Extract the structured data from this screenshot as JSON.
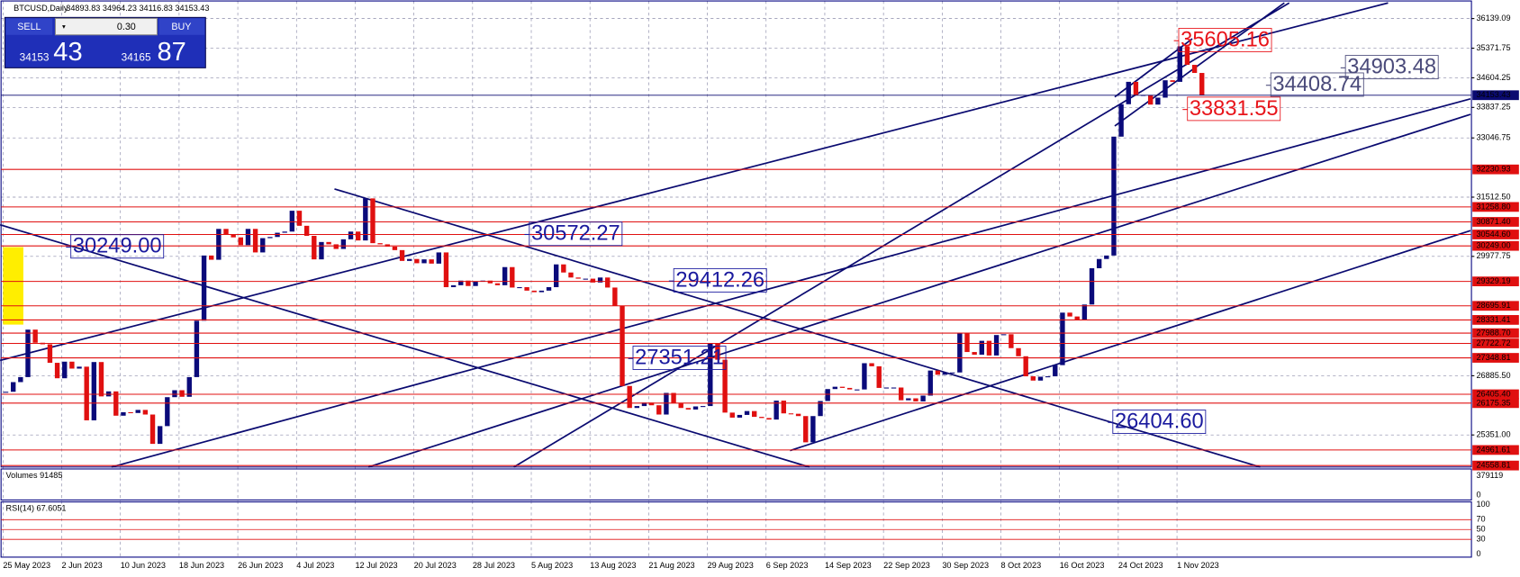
{
  "header": {
    "symbol": "BTCUSD,Daily",
    "ohlc": "34893.83 34964.23 34116.83 34153.43"
  },
  "trade_panel": {
    "sell": "SELL",
    "buy": "BUY",
    "lot": "0.30",
    "sell_small": "34153",
    "sell_big": "43",
    "buy_small": "34165",
    "buy_big": "87"
  },
  "chart_data": {
    "type": "candlestick",
    "ylim": [
      24520,
      36620
    ],
    "yticks": [
      {
        "value": 36139.09,
        "label": "36139.09"
      },
      {
        "value": 35371.75,
        "label": "35371.75"
      },
      {
        "value": 34604.25,
        "label": "34604.25"
      },
      {
        "value": 33837.25,
        "label": "33837.25"
      },
      {
        "value": 33046.75,
        "label": "33046.75"
      },
      {
        "value": 31512.5,
        "label": "31512.50"
      },
      {
        "value": 29977.75,
        "label": "29977.75"
      },
      {
        "value": 26885.5,
        "label": "26885.50"
      },
      {
        "value": 25351,
        "label": "25351.00"
      }
    ],
    "levels": [
      {
        "value": 32230.93,
        "label": "32230.93"
      },
      {
        "value": 31258.8,
        "label": "31258.80"
      },
      {
        "value": 30871.4,
        "label": "30871.40"
      },
      {
        "value": 30544.6,
        "label": "30544.60"
      },
      {
        "value": 30249,
        "label": "30249.00"
      },
      {
        "value": 29329.19,
        "label": "29329.19"
      },
      {
        "value": 28695.91,
        "label": "28695.91"
      },
      {
        "value": 28331.41,
        "label": "28331.41"
      },
      {
        "value": 27988.7,
        "label": "27988.70"
      },
      {
        "value": 27722.72,
        "label": "27722.72"
      },
      {
        "value": 27348.81,
        "label": "27348.81"
      },
      {
        "value": 26405.4,
        "label": "26405.40"
      },
      {
        "value": 26175.35,
        "label": "26175.35"
      },
      {
        "value": 24961.61,
        "label": "24961.61"
      },
      {
        "value": 24558.81,
        "label": "24558.81"
      }
    ],
    "current_price": {
      "value": 34153.43,
      "label": "34153.43"
    },
    "x_tick_labels": [
      "25 May 2023",
      "2 Jun 2023",
      "10 Jun 2023",
      "18 Jun 2023",
      "26 Jun 2023",
      "4 Jul 2023",
      "12 Jul 2023",
      "20 Jul 2023",
      "28 Jul 2023",
      "5 Aug 2023",
      "13 Aug 2023",
      "21 Aug 2023",
      "29 Aug 2023",
      "6 Sep 2023",
      "14 Sep 2023",
      "22 Sep 2023",
      "30 Sep 2023",
      "8 Oct 2023",
      "16 Oct 2023",
      "24 Oct 2023",
      "1 Nov 2023"
    ],
    "closes": [
      26470,
      26720,
      26850,
      28080,
      27740,
      27700,
      27220,
      26820,
      27250,
      27070,
      27120,
      25730,
      27240,
      26350,
      26480,
      25850,
      25940,
      25920,
      26000,
      25880,
      25120,
      25580,
      26330,
      26510,
      26340,
      26850,
      28310,
      30000,
      29890,
      30690,
      30540,
      30470,
      30270,
      30690,
      30080,
      30450,
      30480,
      30590,
      30620,
      31160,
      30770,
      30510,
      29900,
      30350,
      30290,
      30170,
      30420,
      30620,
      30390,
      31480,
      30320,
      30290,
      30230,
      30140,
      29860,
      29910,
      29800,
      29900,
      29790,
      30080,
      29180,
      29230,
      29350,
      29210,
      29320,
      29350,
      29280,
      29230,
      29700,
      29170,
      29180,
      29090,
      29050,
      29090,
      29180,
      29770,
      29560,
      29430,
      29400,
      29400,
      29300,
      29430,
      29170,
      28700,
      26620,
      26050,
      26100,
      26190,
      26120,
      25880,
      26440,
      26170,
      26050,
      26010,
      26090,
      26100,
      27720,
      27300,
      25930,
      25800,
      25870,
      25970,
      25820,
      25790,
      25750,
      26240,
      25910,
      25900,
      25840,
      25160,
      25840,
      26230,
      26540,
      26600,
      26570,
      26530,
      26530,
      27210,
      27130,
      26570,
      26580,
      26580,
      26250,
      26300,
      26220,
      26370,
      27020,
      26910,
      26970,
      26970,
      27990,
      27500,
      27430,
      27790,
      27410,
      27940,
      27960,
      27600,
      27390,
      26870,
      26760,
      26860,
      26870,
      27160,
      28520,
      28420,
      28330,
      28730,
      29670,
      29910,
      30000,
      33080,
      33920,
      34500,
      34160,
      34160,
      33910,
      34090,
      34540,
      34500,
      35420,
      34940,
      34730,
      34153.43
    ],
    "annotations": [
      {
        "text": "30249.00",
        "color": "#1a1a9e"
      },
      {
        "text": "30572.27",
        "color": "#1a1a9e"
      },
      {
        "text": "29412.26",
        "color": "#1a1a9e"
      },
      {
        "text": "27351.21",
        "color": "#1a1a9e"
      },
      {
        "text": "26404.60",
        "color": "#1a1a9e"
      },
      {
        "text": "35605.16",
        "color": "#e8141a"
      },
      {
        "text": "34903.48",
        "color": "#4a4a7a"
      },
      {
        "text": "34408.74",
        "color": "#4a4a7a"
      },
      {
        "text": "33831.55",
        "color": "#e8141a"
      }
    ],
    "up_color": "#0a0a7a",
    "down_color": "#e01010",
    "level_color": "#e01010"
  },
  "volumes": {
    "label": "Volumes 91485",
    "ticks": [
      "379119",
      "0"
    ]
  },
  "rsi": {
    "label": "RSI(14) 67.6051",
    "ylim": [
      0,
      100
    ],
    "yticks": [
      100,
      70,
      50,
      30,
      0
    ]
  }
}
